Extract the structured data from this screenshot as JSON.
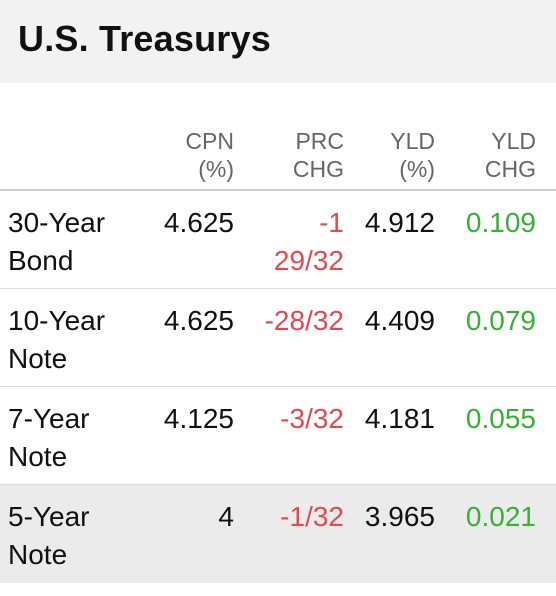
{
  "header": {
    "title": "U.S. Treasurys"
  },
  "columns": {
    "cpn": [
      "CPN",
      "(%)"
    ],
    "prc_chg": [
      "PRC",
      "CHG"
    ],
    "yld": [
      "YLD",
      "(%)"
    ],
    "yld_chg": [
      "YLD",
      "CHG"
    ]
  },
  "rows": [
    {
      "name": [
        "30-Year",
        "Bond"
      ],
      "cpn": "4.625",
      "prc_chg": [
        "-1",
        "29/32"
      ],
      "yld": "4.912",
      "yld_chg": "0.109"
    },
    {
      "name": [
        "10-Year",
        "Note"
      ],
      "cpn": "4.625",
      "prc_chg": [
        "-28/32"
      ],
      "yld": "4.409",
      "yld_chg": "0.079"
    },
    {
      "name": [
        "7-Year",
        "Note"
      ],
      "cpn": "4.125",
      "prc_chg": [
        "-3/32"
      ],
      "yld": "4.181",
      "yld_chg": "0.055"
    },
    {
      "name": [
        "5-Year",
        "Note"
      ],
      "cpn": "4",
      "prc_chg": [
        "-1/32"
      ],
      "yld": "3.965",
      "yld_chg": "0.021"
    }
  ],
  "colors": {
    "negative": "#e5484d",
    "positive": "#34b233",
    "header_bg": "#f2f2f2",
    "highlight_row_bg": "#ebebeb"
  }
}
